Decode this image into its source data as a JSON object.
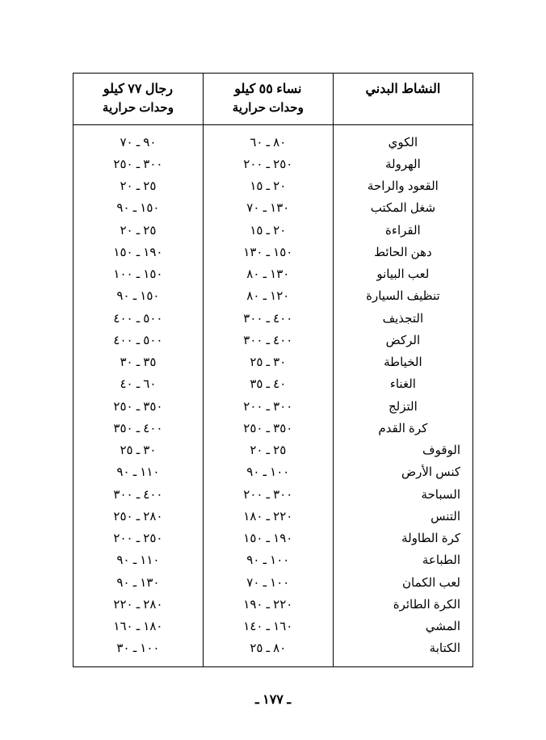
{
  "table": {
    "headers": {
      "activity": "النشاط البدني",
      "women_line1": "نساء ٥٥ كيلو",
      "women_line2": "وحدات حرارية",
      "men_line1": "رجال ٧٧ كيلو",
      "men_line2": "وحدات حرارية"
    },
    "rows": [
      {
        "activity": "الكوي",
        "women": "٨٠ ـ ٦٠",
        "men": "٩٠ ـ ٧٠",
        "align": "center"
      },
      {
        "activity": "الهرولة",
        "women": "٢٥٠ ـ ٢٠٠",
        "men": "٣٠٠ ـ ٢٥٠",
        "align": "center"
      },
      {
        "activity": "القعود والراحة",
        "women": "٢٠ ـ ١٥",
        "men": "٢٥ ـ ٢٠",
        "align": "center"
      },
      {
        "activity": "شغل المكتب",
        "women": "١٣٠ ـ ٧٠",
        "men": "١٥٠ ـ ٩٠",
        "align": "center"
      },
      {
        "activity": "القراءة",
        "women": "٢٠ ـ ١٥",
        "men": "٢٥ ـ ٢٠",
        "align": "center"
      },
      {
        "activity": "دهن الحائط",
        "women": "١٥٠ ـ ١٣٠",
        "men": "١٩٠ ـ ١٥٠",
        "align": "center"
      },
      {
        "activity": "لعب البيانو",
        "women": "١٣٠ ـ ٨٠",
        "men": "١٥٠ ـ ١٠٠",
        "align": "center"
      },
      {
        "activity": "تنظيف السيارة",
        "women": "١٢٠ ـ ٨٠",
        "men": "١٥٠ ـ ٩٠",
        "align": "center"
      },
      {
        "activity": "التجذيف",
        "women": "٤٠٠ ـ ٣٠٠",
        "men": "٥٠٠ ـ ٤٠٠",
        "align": "center"
      },
      {
        "activity": "الركض",
        "women": "٤٠٠ ـ ٣٠٠",
        "men": "٥٠٠ ـ ٤٠٠",
        "align": "center"
      },
      {
        "activity": "الخياطة",
        "women": "٣٠ ـ ٢٥",
        "men": "٣٥ ـ ٣٠",
        "align": "center"
      },
      {
        "activity": "الغناء",
        "women": "٤٠ ـ ٣٥",
        "men": "٦٠ ـ ٤٠",
        "align": "center"
      },
      {
        "activity": "التزلج",
        "women": "٣٠٠ ـ ٢٠٠",
        "men": "٣٥٠ ـ ٢٥٠",
        "align": "center"
      },
      {
        "activity": "كرة القدم",
        "women": "٣٥٠ ـ ٢٥٠",
        "men": "٤٠٠ ـ ٣٥٠",
        "align": "center"
      },
      {
        "activity": "الوقوف",
        "women": "٢٥ ـ ٢٠",
        "men": "٣٠ ـ ٢٥",
        "align": "right"
      },
      {
        "activity": "كنس الأرض",
        "women": "١٠٠ ـ ٩٠",
        "men": "١١٠ ـ ٩٠",
        "align": "right"
      },
      {
        "activity": "السباحة",
        "women": "٣٠٠ ـ ٢٠٠",
        "men": "٤٠٠ ـ ٣٠٠",
        "align": "right"
      },
      {
        "activity": "التنس",
        "women": "٢٢٠ ـ ١٨٠",
        "men": "٢٨٠ ـ ٢٥٠",
        "align": "right"
      },
      {
        "activity": "كرة الطاولة",
        "women": "١٩٠ ـ ١٥٠",
        "men": "٢٥٠ ـ ٢٠٠",
        "align": "right"
      },
      {
        "activity": "الطباعة",
        "women": "١٠٠ ـ ٩٠",
        "men": "١١٠ ـ ٩٠",
        "align": "right"
      },
      {
        "activity": "لعب الكمان",
        "women": "١٠٠ ـ ٧٠",
        "men": "١٣٠ ـ ٩٠",
        "align": "right"
      },
      {
        "activity": "الكرة الطائرة",
        "women": "٢٢٠ ـ ١٩٠",
        "men": "٢٨٠ ـ ٢٢٠",
        "align": "right"
      },
      {
        "activity": "المشي",
        "women": "١٦٠ ـ ١٤٠",
        "men": "١٨٠ ـ ١٦٠",
        "align": "right"
      },
      {
        "activity": "الكتابة",
        "women": "٨٠ ـ ٢٥",
        "men": "١٠٠ ـ ٣٠",
        "align": "right"
      }
    ]
  },
  "pageNumber": "ـ ١٧٧ ـ"
}
